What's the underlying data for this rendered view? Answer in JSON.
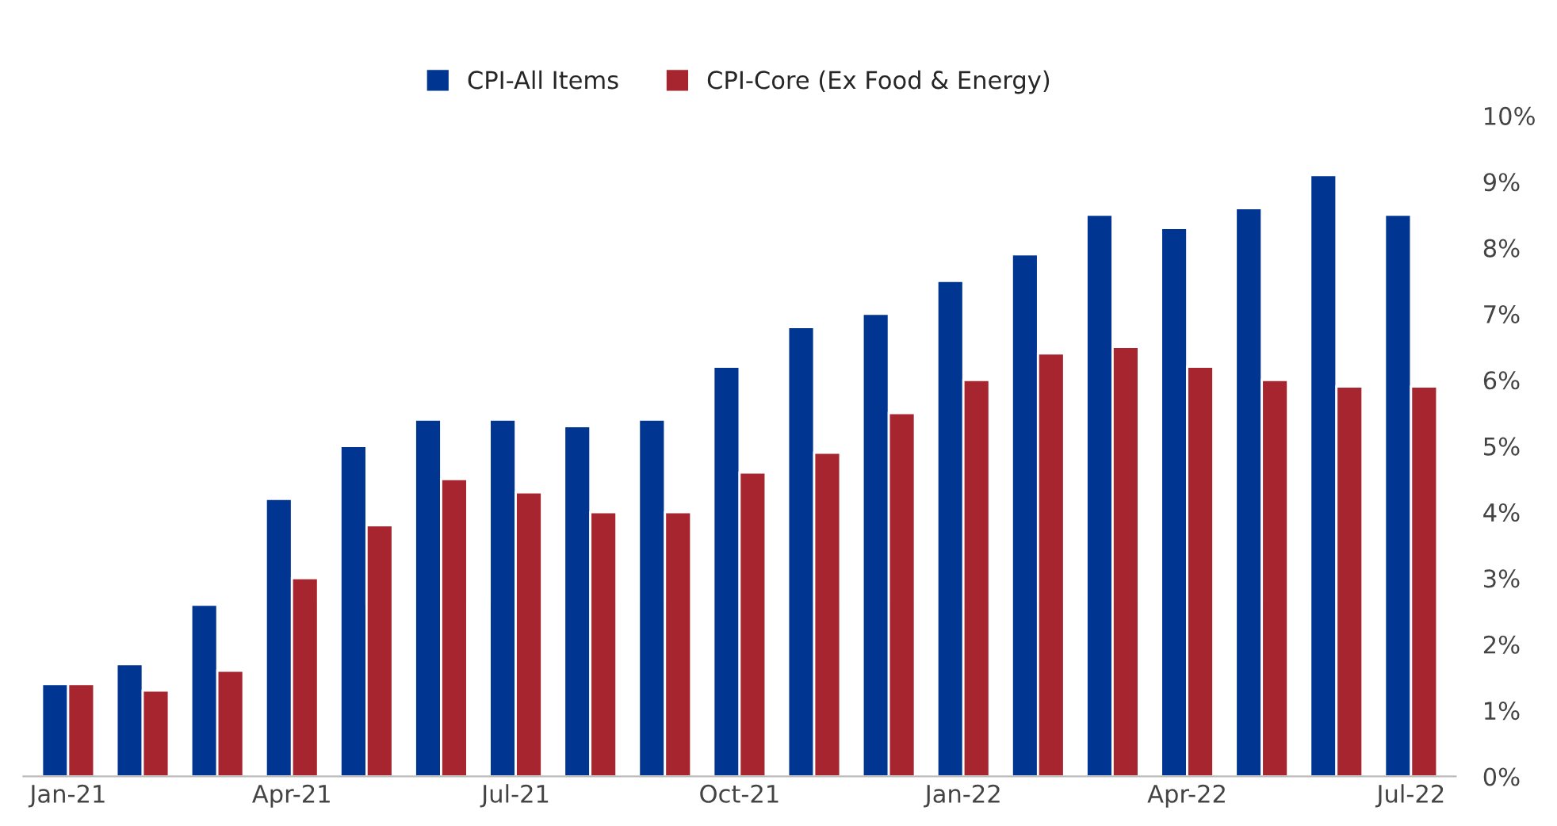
{
  "chart_data": {
    "type": "bar",
    "categories": [
      "Jan-21",
      null,
      null,
      "Apr-21",
      null,
      null,
      "Jul-21",
      null,
      null,
      "Oct-21",
      null,
      null,
      "Jan-22",
      null,
      null,
      "Apr-22",
      null,
      null,
      "Jul-22"
    ],
    "series": [
      {
        "name": "CPI-All Items",
        "color": "#003591",
        "values": [
          1.4,
          1.7,
          2.6,
          4.2,
          5.0,
          5.4,
          5.4,
          5.3,
          5.4,
          6.2,
          6.8,
          7.0,
          7.5,
          7.9,
          8.5,
          8.3,
          8.6,
          9.1,
          8.5
        ]
      },
      {
        "name": "CPI-Core (Ex Food & Energy)",
        "color": "#a6252f",
        "values": [
          1.4,
          1.3,
          1.6,
          3.0,
          3.8,
          4.5,
          4.3,
          4.0,
          4.0,
          4.6,
          4.9,
          5.5,
          6.0,
          6.4,
          6.5,
          6.2,
          6.0,
          5.9,
          5.9
        ]
      }
    ],
    "ylim": [
      0,
      10
    ],
    "yticks": [
      {
        "value": 0,
        "label": "0%"
      },
      {
        "value": 1,
        "label": "1%"
      },
      {
        "value": 2,
        "label": "2%"
      },
      {
        "value": 3,
        "label": "3%"
      },
      {
        "value": 4,
        "label": "4%"
      },
      {
        "value": 5,
        "label": "5%"
      },
      {
        "value": 6,
        "label": "6%"
      },
      {
        "value": 7,
        "label": "7%"
      },
      {
        "value": 8,
        "label": "8%"
      },
      {
        "value": 9,
        "label": "9%"
      },
      {
        "value": 10,
        "label": "10%"
      }
    ],
    "grid": false,
    "legend": "top"
  }
}
